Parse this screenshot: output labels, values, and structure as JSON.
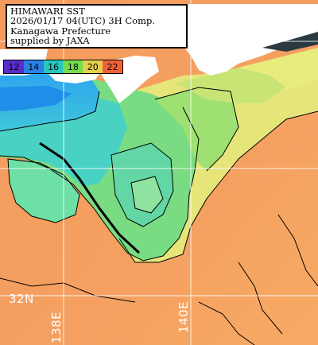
{
  "title_lines": [
    "HIMAWARI SST",
    "2026/01/17 04(UTC) 3H Comp.",
    "Kanagawa Prefecture",
    "supplied by JAXA"
  ],
  "legend": [
    {
      "label": "12",
      "color": "#5a2cc9"
    },
    {
      "label": "14",
      "color": "#2a80e6"
    },
    {
      "label": "16",
      "color": "#27c7c0"
    },
    {
      "label": "18",
      "color": "#72dc4c"
    },
    {
      "label": "20",
      "color": "#e6cf4c"
    },
    {
      "label": "22",
      "color": "#f2603a"
    }
  ],
  "latitude_labels": [
    "32N"
  ],
  "longitude_labels": [
    "138E",
    "140E"
  ],
  "colors": {
    "land": "#ffffff",
    "grid": "#ffffff",
    "contour": "#000000",
    "cool_water": "#3ab0ee",
    "cyan_water": "#38cfd6",
    "green_water": "#70de88",
    "yellow_water": "#e0e97e",
    "warm_water": "#f29b5a"
  }
}
